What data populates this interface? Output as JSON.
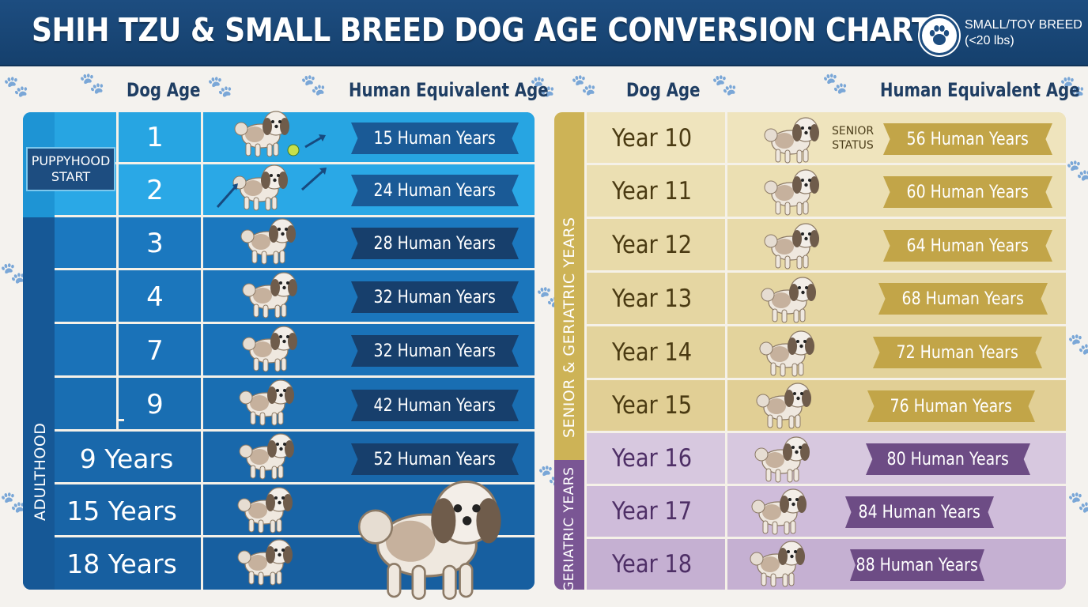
{
  "header": {
    "title": "SHIH TZU & SMALL BREED DOG AGE CONVERSION CHART",
    "badge_line1": "SMALL/TOY BREED",
    "badge_line2": "(<20 lbs)",
    "badge_icon": "paw-icon"
  },
  "left_table": {
    "col_dog_age": "Dog Age",
    "col_human": "Human Equivalent Age",
    "group_puppy": [
      "PUPPYHOOD",
      "START"
    ],
    "group_adult": "ADULTHOOD",
    "rows": [
      {
        "dog": "1",
        "human": "15 Human Years"
      },
      {
        "dog": "2",
        "human": "24 Human Years"
      },
      {
        "dog": "3",
        "human": "28 Human Years"
      },
      {
        "dog": "4",
        "human": "32 Human Years"
      },
      {
        "dog": "7",
        "human": "32 Human Years"
      },
      {
        "dog": "9",
        "human": "42 Human Years"
      },
      {
        "dog": "9 Years",
        "human": "52 Human Years"
      },
      {
        "dog": "15 Years",
        "human": ""
      },
      {
        "dog": "18 Years",
        "human": ""
      }
    ]
  },
  "right_table": {
    "col_dog_age": "Dog Age",
    "col_human": "Human Equivalent Age",
    "group_senior": "SENIOR & GERIATRIC YEARS",
    "group_geriatric": "GERIATRIC YEARS",
    "senior_status": [
      "SENIOR",
      "STATUS"
    ],
    "rows": [
      {
        "dog": "Year 10",
        "human": "56 Human Years"
      },
      {
        "dog": "Year 11",
        "human": "60 Human Years"
      },
      {
        "dog": "Year 12",
        "human": "64 Human Years"
      },
      {
        "dog": "Year 13",
        "human": "68 Human Years"
      },
      {
        "dog": "Year 14",
        "human": "72 Human Years"
      },
      {
        "dog": "Year 15",
        "human": "76 Human Years"
      },
      {
        "dog": "Year 16",
        "human": "80 Human Years"
      },
      {
        "dog": "Year 17",
        "human": "84 Human Years"
      },
      {
        "dog": "Year 18",
        "human": "88 Human Years"
      }
    ]
  },
  "colors": {
    "header_bg": "#1d4d80",
    "puppy_row": "#2aa8e6",
    "adult_row": "#1a72b8",
    "ribbon_blue": "#1a4f86",
    "senior_row": "#eadfb0",
    "ribbon_gold": "#c7ac4a",
    "geriatric_row": "#cdbcd9",
    "ribbon_purple": "#6d4c85"
  }
}
